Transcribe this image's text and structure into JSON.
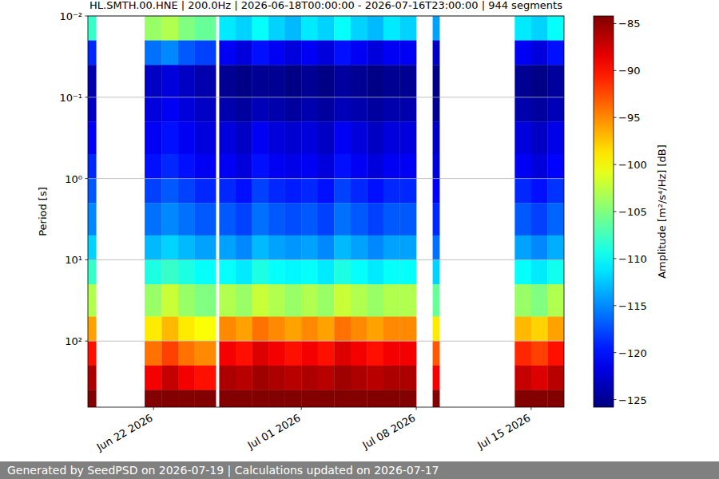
{
  "chart_data": {
    "type": "heatmap",
    "title": "HL.SMTH.00.HNE | 200.0Hz | 2026-06-18T00:00:00 - 2026-07-16T23:00:00 | 944 segments",
    "y_label": "Period [s]",
    "footer": "Generated by SeedPSD on 2026-07-19 | Calculations updated on 2026-07-17",
    "log": "y",
    "grid": "y",
    "xlim": [
      "2026-06-18T00:00",
      "2026-07-17T00:00"
    ],
    "xticks": [
      {
        "value": "2026-06-22T00:00",
        "label": "Jun 22 2026"
      },
      {
        "value": "2026-07-01T00:00",
        "label": "Jul 01 2026"
      },
      {
        "value": "2026-07-08T00:00",
        "label": "Jul 08 2026"
      },
      {
        "value": "2026-07-15T00:00",
        "label": "Jul 15 2026"
      }
    ],
    "ylim": [
      0.01,
      650
    ],
    "yticks": [
      {
        "value": 0.01,
        "label": "10⁻²"
      },
      {
        "value": 0.1,
        "label": "10⁻¹"
      },
      {
        "value": 1,
        "label": "10⁰"
      },
      {
        "value": 10,
        "label": "10¹"
      },
      {
        "value": 100,
        "label": "10²"
      }
    ],
    "x_edges": [
      "2026-06-18T00:00",
      "2026-06-18T12:00",
      "2026-06-21T11:00",
      "2026-06-22T12:00",
      "2026-06-23T12:00",
      "2026-06-24T12:00",
      "2026-06-25T19:00",
      "2026-06-26T00:00",
      "2026-06-27T00:00",
      "2026-06-28T00:00",
      "2026-06-29T00:00",
      "2026-06-30T00:00",
      "2026-07-01T00:00",
      "2026-07-02T00:00",
      "2026-07-03T00:00",
      "2026-07-04T00:00",
      "2026-07-05T00:00",
      "2026-07-06T00:00",
      "2026-07-07T00:00",
      "2026-07-08T00:00",
      "2026-07-09T00:00",
      "2026-07-09T10:00",
      "2026-07-14T00:00",
      "2026-07-15T00:00",
      "2026-07-16T00:00",
      "2026-07-17T00:00"
    ],
    "y_edges": [
      0.01,
      0.02,
      0.04,
      0.1,
      0.2,
      0.5,
      1,
      2,
      5,
      10,
      20,
      50,
      100,
      200,
      400,
      650
    ],
    "cells": [
      [
        -108,
        null,
        -104,
        -103,
        -105,
        -106,
        null,
        -111,
        -112,
        -110,
        -112,
        -113,
        -111,
        -112,
        -110,
        -112,
        -113,
        -111,
        -112,
        null,
        -114,
        null,
        -111,
        -112,
        -110
      ],
      [
        -119,
        null,
        -116,
        -115,
        -117,
        -118,
        null,
        -121,
        -122,
        -120,
        -121,
        -122,
        -121,
        -122,
        -120,
        -121,
        -122,
        -121,
        -121,
        null,
        -123,
        null,
        -121,
        -122,
        -120
      ],
      [
        -124,
        null,
        -123,
        -122,
        -123,
        -124,
        null,
        -125,
        -125.5,
        -125,
        -125,
        -125.5,
        -125,
        -125.5,
        -124.5,
        -125,
        -125.5,
        -125,
        -125,
        null,
        -125.5,
        null,
        -125,
        -125.5,
        -124.5
      ],
      [
        -123,
        null,
        -122,
        -121,
        -122,
        -123,
        null,
        -124,
        -124.5,
        -123.5,
        -124,
        -124.5,
        -124,
        -124.5,
        -123.5,
        -124,
        -124.5,
        -124,
        -124,
        null,
        -125,
        null,
        -124,
        -124.5,
        -123.5
      ],
      [
        -121,
        null,
        -121,
        -120,
        -121,
        -122,
        null,
        -122,
        -123,
        -121,
        -122,
        -122.5,
        -122,
        -123,
        -121,
        -122,
        -123,
        -122,
        -122,
        null,
        -123,
        null,
        -122,
        -123,
        -121.5
      ],
      [
        -119,
        null,
        -120,
        -119,
        -120,
        -121,
        null,
        -121,
        -122,
        -120,
        -121,
        -121.5,
        -121,
        -122,
        -120,
        -121,
        -122,
        -121,
        -121,
        null,
        -122,
        null,
        -121,
        -122,
        -120.5
      ],
      [
        -117,
        null,
        -118,
        -117,
        -118,
        -119,
        null,
        -119,
        -120,
        -118,
        -119,
        -119.5,
        -119,
        -120,
        -118,
        -119,
        -120,
        -119,
        -119,
        null,
        -121,
        null,
        -119,
        -120,
        -118.5
      ],
      [
        -115,
        null,
        -116,
        -115,
        -116,
        -117,
        null,
        -117,
        -118,
        -116,
        -117,
        -117.5,
        -117,
        -118,
        -116,
        -117,
        -118,
        -117,
        -117,
        null,
        -119,
        null,
        -117,
        -118,
        -116.5
      ],
      [
        -112,
        null,
        -113,
        -112,
        -113,
        -114,
        null,
        -114,
        -115,
        -113,
        -114,
        -114.5,
        -114,
        -115,
        -113,
        -114,
        -115,
        -114,
        -114,
        null,
        -116,
        null,
        -114,
        -115,
        -113.5
      ],
      [
        -108,
        null,
        -109,
        -108,
        -109,
        -110,
        null,
        -110,
        -111,
        -109,
        -110,
        -110.5,
        -110,
        -111,
        -109,
        -110,
        -111,
        -110,
        -110,
        null,
        -112,
        null,
        -110,
        -111,
        -109.5
      ],
      [
        -103,
        null,
        -104,
        -102,
        -104,
        -105,
        null,
        -103,
        -104,
        -102,
        -103,
        -104,
        -103,
        -104,
        -102,
        -103,
        -104,
        -103,
        -103,
        null,
        -106,
        null,
        -104,
        -105,
        -103
      ],
      [
        -96,
        null,
        -99,
        -97,
        -99,
        -100,
        null,
        -95,
        -96,
        -94,
        -95,
        -96,
        -95,
        -96,
        -94,
        -95,
        -96,
        -95,
        -95,
        null,
        -99,
        null,
        -97,
        -98,
        -96
      ],
      [
        -90,
        null,
        -94,
        -92,
        -94,
        -95,
        null,
        -89,
        -90,
        -88,
        -89,
        -90,
        -89,
        -90,
        -88,
        -89,
        -90,
        -89,
        -89,
        null,
        -93,
        null,
        -91,
        -92,
        -90
      ],
      [
        -86,
        null,
        -89,
        -87,
        -89,
        -90,
        null,
        -86,
        -86.5,
        -85.5,
        -86,
        -86.5,
        -86,
        -86.5,
        -85.5,
        -86,
        -86.5,
        -86,
        -86,
        null,
        -89,
        null,
        -87,
        -88,
        -86.5
      ],
      [
        -84.3,
        null,
        -84.3,
        -84.3,
        -84.3,
        -84.3,
        null,
        -84.3,
        -84.3,
        -84.3,
        -84.3,
        -84.3,
        -84.3,
        -84.3,
        -84.3,
        -84.3,
        -84.3,
        -84.3,
        -84.3,
        null,
        -84.3,
        null,
        -84.3,
        -84.3,
        -84.3
      ]
    ],
    "colorbar": {
      "label": "Amplitude [m²/s⁴/Hz] [dB]",
      "range": [
        -125.8,
        -84.2
      ],
      "ticks": [
        {
          "value": -85,
          "label": "−85"
        },
        {
          "value": -90,
          "label": "−90"
        },
        {
          "value": -95,
          "label": "−95"
        },
        {
          "value": -100,
          "label": "−100"
        },
        {
          "value": -105,
          "label": "−105"
        },
        {
          "value": -110,
          "label": "−110"
        },
        {
          "value": -115,
          "label": "−115"
        },
        {
          "value": -120,
          "label": "−120"
        },
        {
          "value": -125,
          "label": "−125"
        }
      ]
    }
  }
}
